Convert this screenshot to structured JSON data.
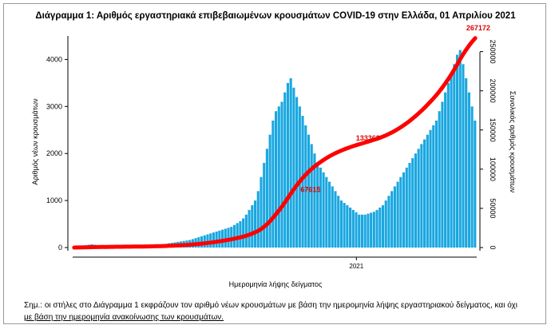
{
  "chart_data": {
    "type": "bar",
    "title": "Διάγραμμα 1: Αριθμός εργαστηριακά επιβεβαιωμένων κρουσμάτων COVID-19 στην Ελλάδα, 01 Απριλίου 2021",
    "xlabel": "Ημερομηνία λήψης δείγματος",
    "ylabel": "Αριθμός νέων κρουσμάτων",
    "y2label": "Συνολικός αριθμός κρουσμάτων",
    "x_tick_labels": [
      "2021"
    ],
    "ylim": [
      0,
      4500
    ],
    "y_ticks": [
      0,
      1000,
      2000,
      3000,
      4000
    ],
    "y2lim": [
      0,
      270000
    ],
    "y2_ticks": [
      0,
      50000,
      100000,
      150000,
      200000,
      250000
    ],
    "grid": false,
    "series": [
      {
        "kind": "bar",
        "color": "#1aa7e0",
        "values": [
          20,
          25,
          30,
          40,
          50,
          60,
          70,
          60,
          50,
          45,
          40,
          35,
          30,
          30,
          25,
          25,
          20,
          20,
          20,
          20,
          25,
          25,
          30,
          35,
          40,
          45,
          50,
          55,
          60,
          60,
          70,
          80,
          90,
          100,
          110,
          120,
          130,
          140,
          150,
          160,
          180,
          200,
          220,
          240,
          260,
          280,
          300,
          320,
          340,
          360,
          380,
          400,
          420,
          440,
          480,
          520,
          560,
          620,
          700,
          800,
          900,
          1000,
          1200,
          1500,
          1800,
          2100,
          2400,
          2700,
          2900,
          3000,
          3100,
          3300,
          3500,
          3600,
          3400,
          3200,
          3000,
          2800,
          2600,
          2400,
          2200,
          2000,
          1800,
          1700,
          1600,
          1500,
          1400,
          1300,
          1200,
          1100,
          1000,
          950,
          900,
          850,
          800,
          750,
          700,
          700,
          700,
          720,
          740,
          760,
          800,
          850,
          900,
          1000,
          1100,
          1200,
          1300,
          1400,
          1500,
          1600,
          1700,
          1800,
          1900,
          2000,
          2100,
          2200,
          2300,
          2400,
          2500,
          2600,
          2700,
          2900,
          3100,
          3300,
          3500,
          3700,
          3900,
          4100,
          4200,
          3900,
          3600,
          3300,
          3000,
          2700
        ]
      },
      {
        "kind": "line",
        "color": "#ff0000",
        "axis": "right",
        "cumulative": true
      }
    ],
    "annotations": [
      {
        "text": "67615",
        "x": 84,
        "y2": 67615
      },
      {
        "text": "133363",
        "x": 104,
        "y2": 133363
      },
      {
        "text": "267172",
        "x": 136,
        "y2": 267172
      }
    ]
  },
  "footnote": {
    "line1": "Σημ.: οι στήλες στο Διάγραμμα 1 εκφράζουν τον αριθμό νέων κρουσμάτων με βάση την ημερομηνία λήψης εργαστηριακού δείγματος, και όχι",
    "line2": "με βάση την ημερομηνία ανακοίνωσης των κρουσμάτων."
  }
}
